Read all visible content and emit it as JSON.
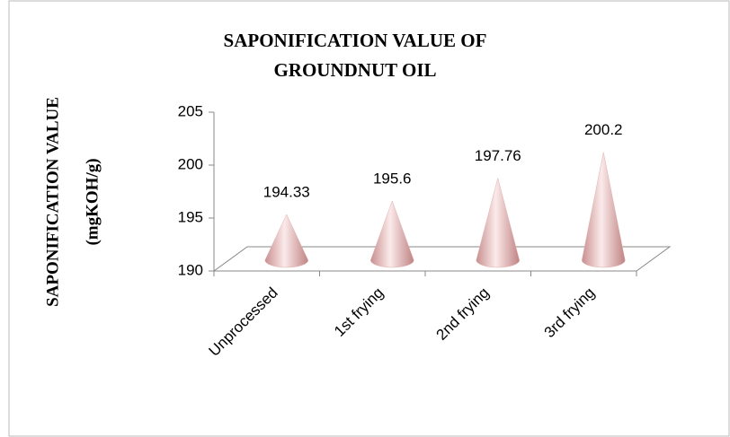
{
  "chart_data": {
    "type": "cone3d",
    "title": [
      "SAPONIFICATION VALUE OF",
      "GROUNDNUT OIL"
    ],
    "y_label": [
      "SAPONIFICATION VALUE",
      "(mgKOH/g)"
    ],
    "categories": [
      "Unprocessed",
      "1st frying",
      "2nd frying",
      "3rd frying"
    ],
    "values": [
      194.33,
      195.6,
      197.76,
      200.2
    ],
    "color": "#e3b0b0",
    "ylim": [
      190,
      205
    ],
    "yticks": [
      190,
      195,
      200,
      205
    ]
  }
}
